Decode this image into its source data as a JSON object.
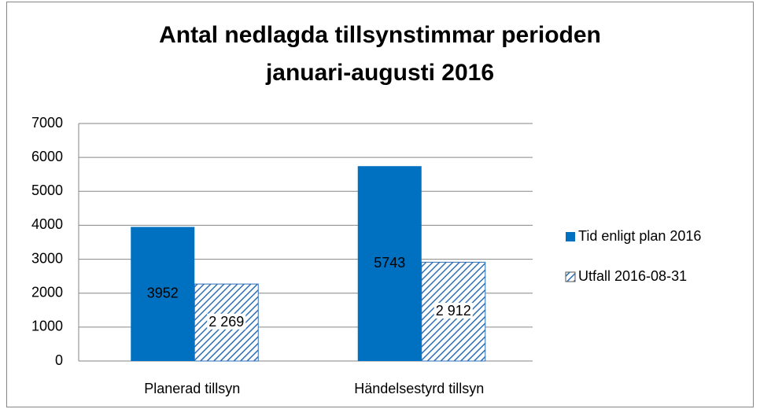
{
  "chart_data": {
    "type": "bar",
    "title": [
      "Antal nedlagda tillsynstimmar perioden",
      "januari-augusti 2016"
    ],
    "categories": [
      "Planerad tillsyn",
      "Händelsestyrd tillsyn"
    ],
    "series": [
      {
        "name": "Tid enligt plan 2016",
        "color": "#0070c0",
        "values": [
          3952,
          5743
        ]
      },
      {
        "name": "Utfall 2016-08-31",
        "color": "#2e6fb5",
        "pattern": "hatch",
        "values": [
          2269,
          2912
        ],
        "value_labels": [
          "2 269",
          "2 912"
        ]
      }
    ],
    "ylim": [
      0,
      7000
    ],
    "yticks": [
      0,
      1000,
      2000,
      3000,
      4000,
      5000,
      6000,
      7000
    ],
    "grid": true,
    "legend": "right"
  }
}
